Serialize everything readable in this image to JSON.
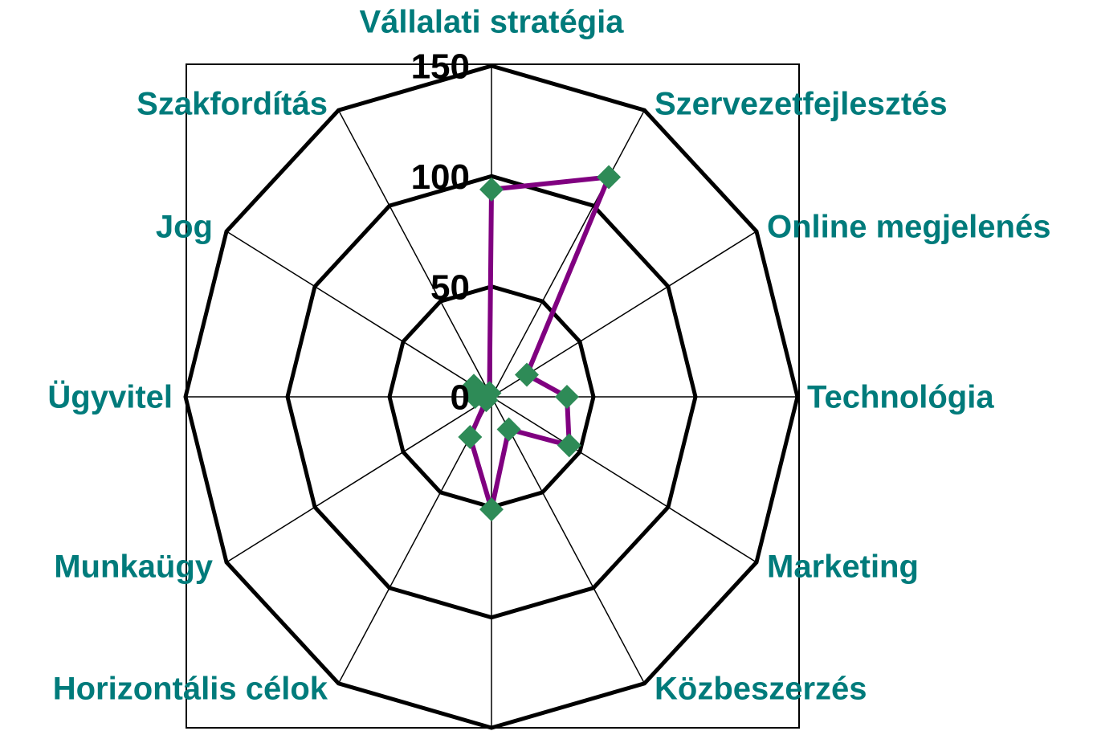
{
  "chart_data": {
    "type": "radar",
    "title": null,
    "categories": [
      "Vállalati stratégia",
      "Szervezetfejlesztés",
      "Online megjelenés",
      "Technológia",
      "Marketing",
      "Közbeszerzés",
      null,
      "Horizontális célok",
      "Munkaügy",
      "Ügyvitel",
      "Jog",
      "Szakfordítás"
    ],
    "series": [
      {
        "name": null,
        "color": "#800080",
        "marker_color": "#2e8b57",
        "values": [
          94,
          115,
          20,
          37,
          44,
          17,
          51,
          21,
          3,
          8,
          10,
          2
        ]
      }
    ],
    "ylim": [
      0,
      150
    ],
    "yticks": [
      0,
      50,
      100,
      150
    ],
    "grid": true
  }
}
